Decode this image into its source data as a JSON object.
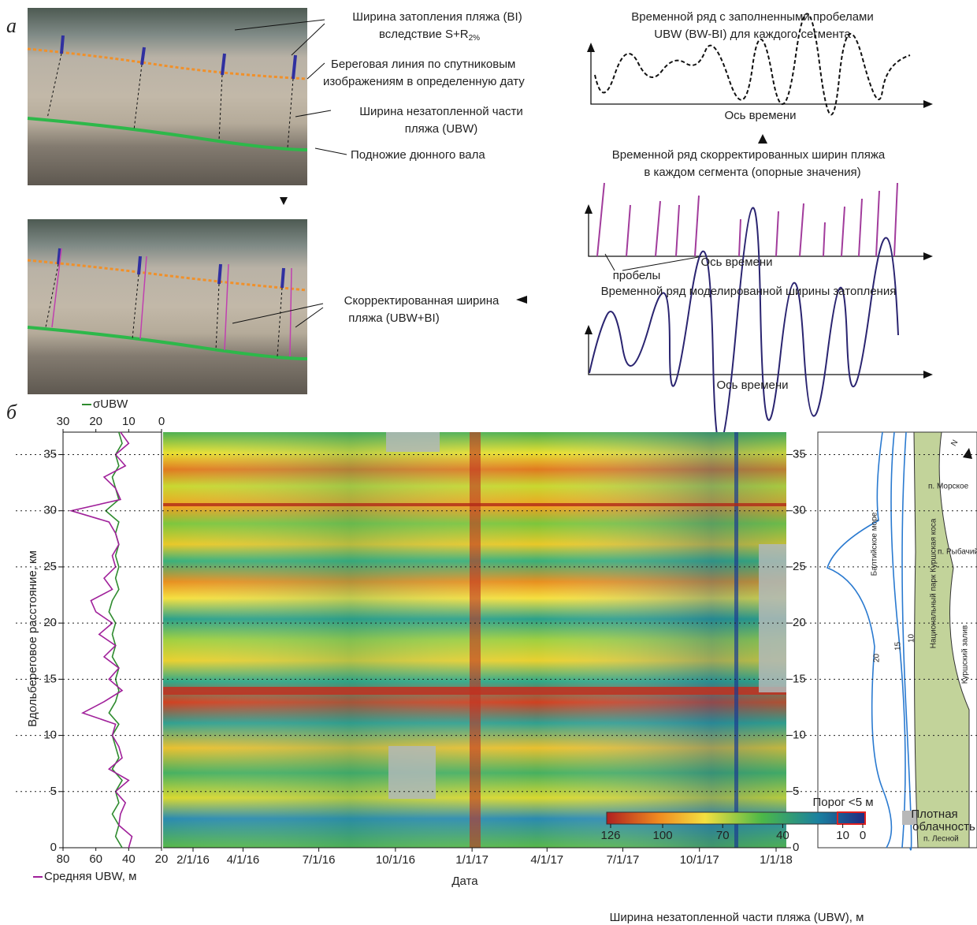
{
  "panel_a": {
    "label": "а",
    "photo_annotations": {
      "bi": "Ширина затопления пляжа (BI)",
      "bi_cause": "вследствие S+R",
      "bi_cause_sub": "2%",
      "shoreline_1": "Береговая линия по спутниковым",
      "shoreline_2": "изображениям в определенную дату",
      "ubw_1": "Ширина незатопленной части",
      "ubw_2": "пляжа (UBW)",
      "dune": "Подножие дюнного вала",
      "corrected_1": "Скорректированная ширина",
      "corrected_2": "пляжа (UBW+BI)"
    },
    "series_panels": [
      {
        "title_1": "Временной ряд с заполненными пробелами",
        "title_2": "UBW (BW-BI) для каждого сегмента",
        "axis": "Ось времени"
      },
      {
        "title_1": "Временной ряд скорректированных ширин пляжа",
        "title_2": "в каждом сегмента (опорные значения)",
        "axis": "Ось времени",
        "gaps": "пробелы"
      },
      {
        "title_1": "Временной ряд моделированной ширины затопления",
        "axis": "Ось времени"
      }
    ]
  },
  "panel_b": {
    "label": "б",
    "profile": {
      "y_label": "Вдольбереговое расстояние, км",
      "ylim": [
        0,
        37
      ],
      "yticks": [
        0,
        5,
        10,
        15,
        20,
        25,
        30,
        35
      ],
      "sigma_label": "σUBW",
      "sigma_color": "#2e8b2e",
      "sigma_lim": [
        30,
        0
      ],
      "sigma_ticks": [
        30,
        20,
        10,
        0
      ],
      "mean_label": "Средняя UBW, м",
      "mean_color": "#a0209a",
      "mean_lim": [
        80,
        20
      ],
      "mean_ticks": [
        80,
        60,
        40,
        20
      ],
      "km": [
        0,
        1,
        2,
        3,
        4,
        5,
        6,
        7,
        8,
        9,
        10,
        11,
        12,
        13,
        14,
        15,
        16,
        17,
        18,
        19,
        20,
        21,
        22,
        23,
        24,
        25,
        26,
        27,
        28,
        29,
        30,
        31,
        32,
        33,
        34,
        35,
        36,
        37
      ],
      "mean": [
        40,
        38,
        46,
        45,
        42,
        48,
        40,
        52,
        44,
        46,
        50,
        48,
        68,
        55,
        44,
        52,
        46,
        55,
        48,
        58,
        50,
        60,
        63,
        50,
        55,
        48,
        50,
        46,
        48,
        52,
        75,
        45,
        48,
        55,
        42,
        48,
        40,
        45
      ],
      "sigma": [
        12,
        14,
        13,
        15,
        13,
        14,
        12,
        15,
        13,
        14,
        15,
        13,
        16,
        14,
        13,
        14,
        13,
        15,
        14,
        15,
        14,
        16,
        15,
        13,
        14,
        13,
        14,
        13,
        14,
        13,
        17,
        13,
        14,
        15,
        13,
        14,
        12,
        13
      ]
    },
    "heatmap": {
      "x_label": "Дата",
      "xticks": [
        "2/1/16",
        "4/1/16",
        "7/1/16",
        "10/1/16",
        "1/1/17",
        "4/1/17",
        "7/1/17",
        "10/1/17",
        "1/1/18"
      ],
      "ylim": [
        0,
        37
      ],
      "yticks": [
        0,
        5,
        10,
        15,
        20,
        25,
        30,
        35
      ]
    },
    "colorbar": {
      "lim": [
        126,
        0
      ],
      "ticks": [
        126,
        100,
        70,
        40,
        10,
        0
      ],
      "label": "Ширина незатопленной части пляжа (UBW), м",
      "threshold": "Порог <5 м",
      "cloud_1": "Плотная",
      "cloud_2": "облачность"
    },
    "map": {
      "sea": "Балтийское море",
      "park": "Национальный парк Куршская коса",
      "lagoon": "Куршский залив",
      "towns": [
        "п. Морское",
        "п. Рыбачий",
        "п. Лесной"
      ],
      "depths": [
        "20",
        "15",
        "10"
      ],
      "north": "N"
    }
  }
}
